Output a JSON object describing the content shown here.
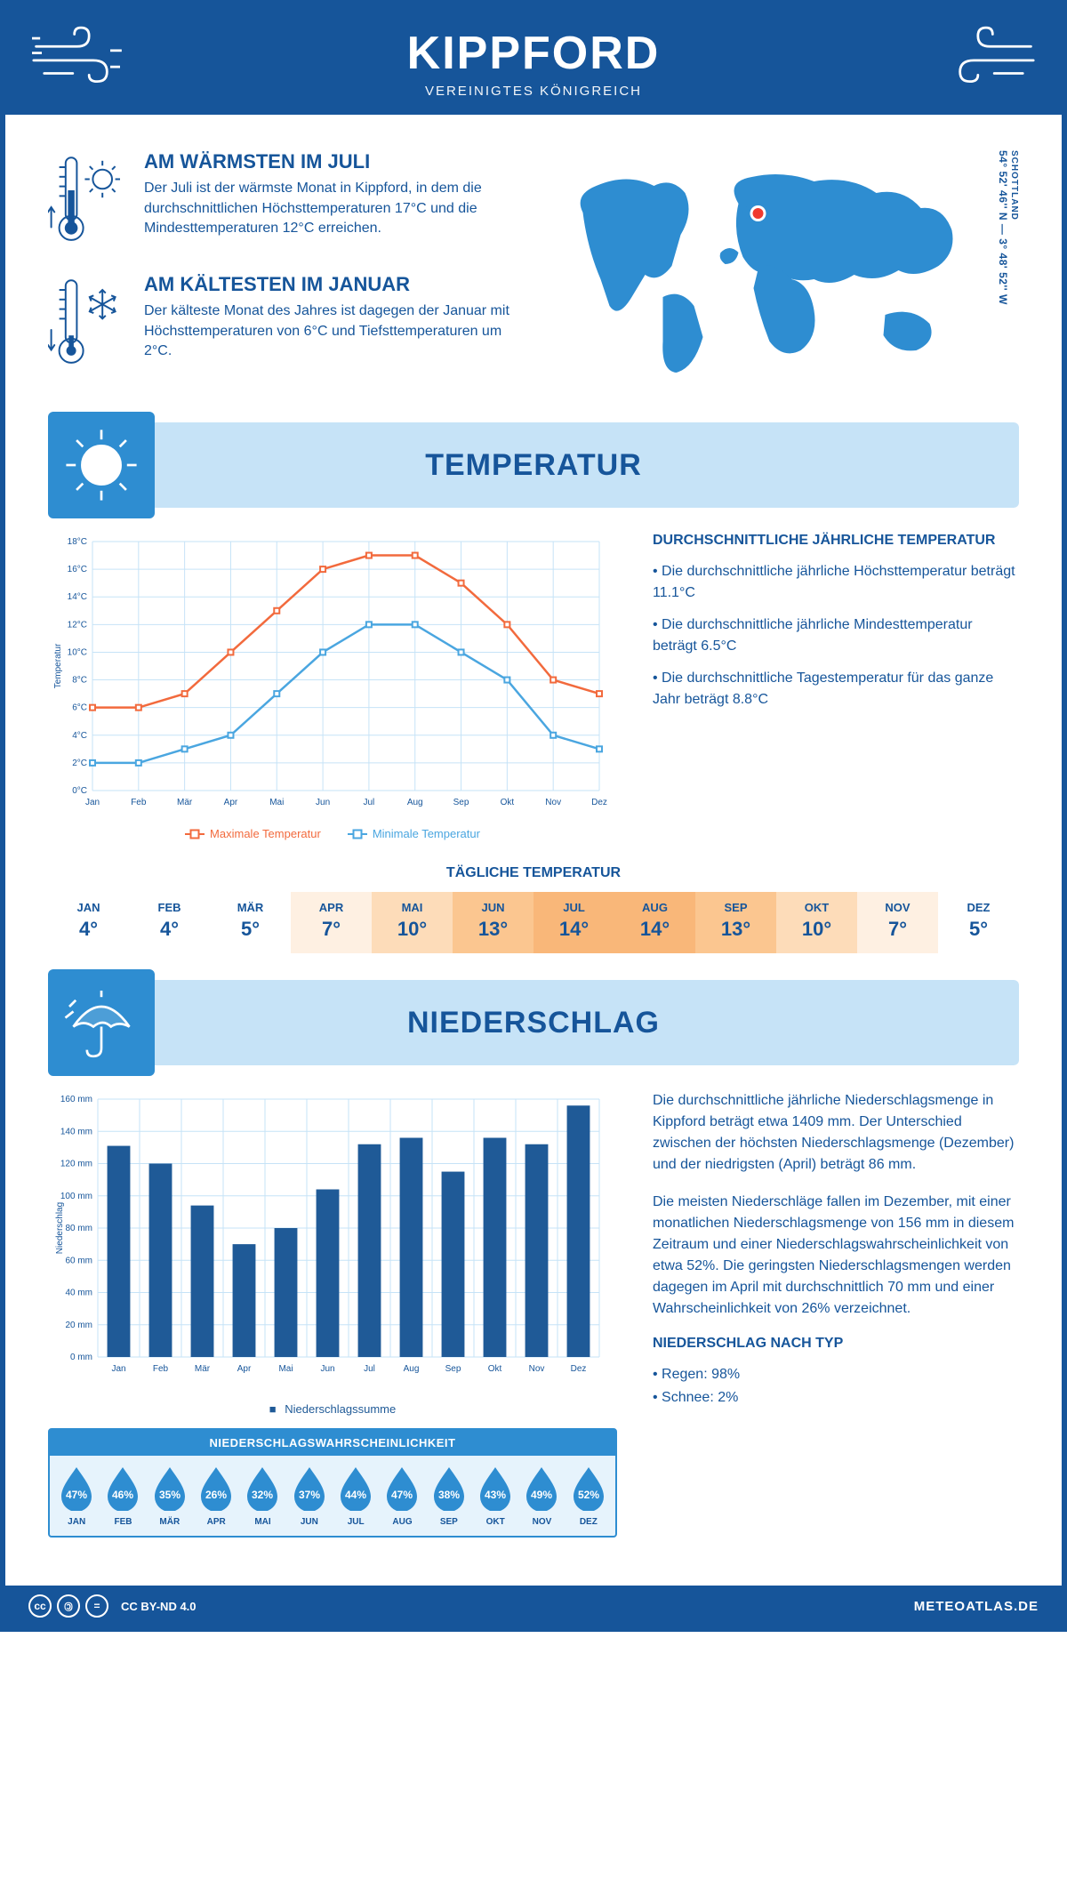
{
  "header": {
    "title": "KIPPFORD",
    "subtitle": "VEREINIGTES KÖNIGREICH"
  },
  "coords": {
    "text": "54° 52' 46'' N — 3° 48' 52'' W",
    "country": "SCHOTTLAND"
  },
  "colors": {
    "brand": "#16559a",
    "accent": "#2e8dd1",
    "light": "#c6e3f7",
    "max_line": "#f26a3d",
    "min_line": "#4aa6e0",
    "bar": "#1f5a97"
  },
  "facts": {
    "warm": {
      "title": "AM WÄRMSTEN IM JULI",
      "text": "Der Juli ist der wärmste Monat in Kippford, in dem die durchschnittlichen Höchsttemperaturen 17°C und die Mindesttemperaturen 12°C erreichen."
    },
    "cold": {
      "title": "AM KÄLTESTEN IM JANUAR",
      "text": "Der kälteste Monat des Jahres ist dagegen der Januar mit Höchsttemperaturen von 6°C und Tiefsttemperaturen um 2°C."
    }
  },
  "temperature_section": {
    "heading": "TEMPERATUR"
  },
  "temp_chart": {
    "type": "line",
    "months": [
      "Jan",
      "Feb",
      "Mär",
      "Apr",
      "Mai",
      "Jun",
      "Jul",
      "Aug",
      "Sep",
      "Okt",
      "Nov",
      "Dez"
    ],
    "max": [
      6,
      6,
      7,
      10,
      13,
      16,
      17,
      17,
      15,
      12,
      8,
      7
    ],
    "min": [
      2,
      2,
      3,
      4,
      7,
      10,
      12,
      12,
      10,
      8,
      4,
      3
    ],
    "ylim": [
      0,
      18
    ],
    "ytick_step": 2,
    "y_axis_label": "Temperatur",
    "legend_max": "Maximale Temperatur",
    "legend_min": "Minimale Temperatur",
    "grid_color": "#c6e3f7",
    "line_colors": {
      "max": "#f26a3d",
      "min": "#4aa6e0"
    },
    "line_width": 2.5,
    "marker": "square",
    "marker_size": 6
  },
  "temp_side": {
    "heading": "DURCHSCHNITTLICHE JÄHRLICHE TEMPERATUR",
    "bullets": [
      "• Die durchschnittliche jährliche Höchsttemperatur beträgt 11.1°C",
      "• Die durchschnittliche jährliche Mindesttemperatur beträgt 6.5°C",
      "• Die durchschnittliche Tagestemperatur für das ganze Jahr beträgt 8.8°C"
    ]
  },
  "daily_temp": {
    "heading": "TÄGLICHE TEMPERATUR",
    "months": [
      "JAN",
      "FEB",
      "MÄR",
      "APR",
      "MAI",
      "JUN",
      "JUL",
      "AUG",
      "SEP",
      "OKT",
      "NOV",
      "DEZ"
    ],
    "values": [
      "4°",
      "4°",
      "5°",
      "7°",
      "10°",
      "13°",
      "14°",
      "14°",
      "13°",
      "10°",
      "7°",
      "5°"
    ],
    "cell_colors": [
      "#ffffff",
      "#ffffff",
      "#ffffff",
      "#fef0e2",
      "#fddcb9",
      "#fbc690",
      "#f9b779",
      "#f9b779",
      "#fbc690",
      "#fddcb9",
      "#fef0e2",
      "#ffffff"
    ]
  },
  "precip_section": {
    "heading": "NIEDERSCHLAG"
  },
  "precip_chart": {
    "type": "bar",
    "months": [
      "Jan",
      "Feb",
      "Mär",
      "Apr",
      "Mai",
      "Jun",
      "Jul",
      "Aug",
      "Sep",
      "Okt",
      "Nov",
      "Dez"
    ],
    "values_mm": [
      131,
      120,
      94,
      70,
      80,
      104,
      132,
      136,
      115,
      136,
      132,
      156
    ],
    "ylim": [
      0,
      160
    ],
    "ytick_step": 20,
    "y_axis_label": "Niederschlag",
    "bar_color": "#1f5a97",
    "bar_width": 0.55,
    "grid_color": "#c6e3f7",
    "legend": "Niederschlagssumme"
  },
  "precip_text": {
    "p1": "Die durchschnittliche jährliche Niederschlagsmenge in Kippford beträgt etwa 1409 mm. Der Unterschied zwischen der höchsten Niederschlagsmenge (Dezember) und der niedrigsten (April) beträgt 86 mm.",
    "p2": "Die meisten Niederschläge fallen im Dezember, mit einer monatlichen Niederschlagsmenge von 156 mm in diesem Zeitraum und einer Niederschlagswahrscheinlichkeit von etwa 52%. Die geringsten Niederschlagsmengen werden dagegen im April mit durchschnittlich 70 mm und einer Wahrscheinlichkeit von 26% verzeichnet.",
    "type_heading": "NIEDERSCHLAG NACH TYP",
    "type_bullets": [
      "• Regen: 98%",
      "• Schnee: 2%"
    ]
  },
  "prob": {
    "heading": "NIEDERSCHLAGSWAHRSCHEINLICHKEIT",
    "months": [
      "JAN",
      "FEB",
      "MÄR",
      "APR",
      "MAI",
      "JUN",
      "JUL",
      "AUG",
      "SEP",
      "OKT",
      "NOV",
      "DEZ"
    ],
    "percent": [
      "47%",
      "46%",
      "35%",
      "26%",
      "32%",
      "37%",
      "44%",
      "47%",
      "38%",
      "43%",
      "49%",
      "52%"
    ],
    "drop_color": "#2e8dd1"
  },
  "footer": {
    "license": "CC BY-ND 4.0",
    "site": "METEOATLAS.DE"
  }
}
